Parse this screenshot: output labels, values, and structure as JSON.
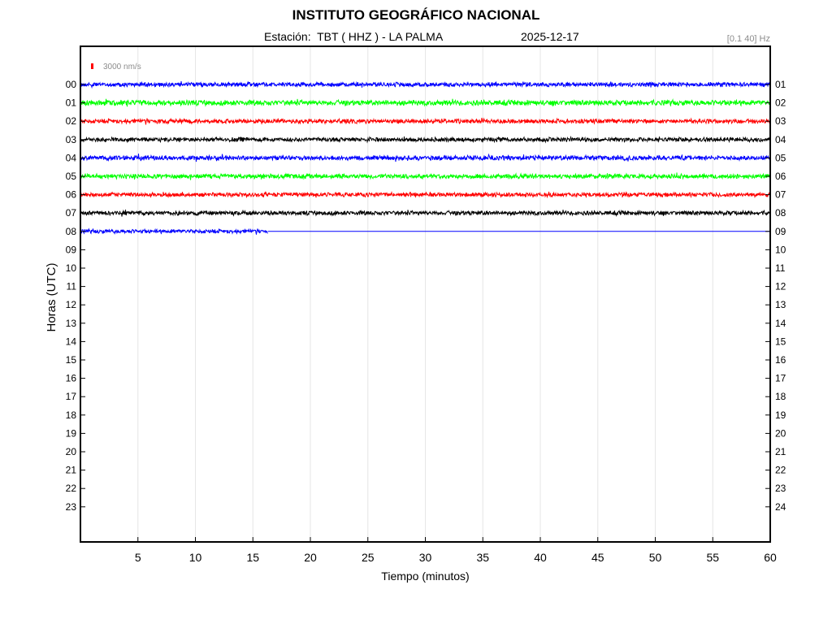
{
  "header": {
    "title": "INSTITUTO GEOGRÁFICO NACIONAL",
    "station": "Estación:  TBT ( HHZ ) - LA PALMA",
    "date": "2025-12-17",
    "band": "[0.1 40] Hz"
  },
  "chart_data": {
    "type": "line",
    "title": "INSTITUTO GEOGRÁFICO NACIONAL",
    "xlabel": "Tiempo (minutos)",
    "ylabel": "Horas (UTC)",
    "xlim": [
      0,
      60
    ],
    "x_ticks": [
      "5",
      "10",
      "15",
      "20",
      "25",
      "30",
      "35",
      "40",
      "45",
      "50",
      "55",
      "60"
    ],
    "y_ticks_left": [
      "00",
      "01",
      "02",
      "03",
      "04",
      "05",
      "06",
      "07",
      "08",
      "09",
      "10",
      "11",
      "12",
      "13",
      "14",
      "15",
      "16",
      "17",
      "18",
      "19",
      "20",
      "21",
      "22",
      "23"
    ],
    "y_ticks_right": [
      "01",
      "02",
      "03",
      "04",
      "05",
      "06",
      "07",
      "08",
      "09",
      "10",
      "11",
      "12",
      "13",
      "14",
      "15",
      "16",
      "17",
      "18",
      "19",
      "20",
      "21",
      "22",
      "23",
      "24"
    ],
    "scale_label": "3000 nm/s",
    "grid": "vertical",
    "colors": [
      "#0000ff",
      "#00ff00",
      "#ff0000",
      "#000000"
    ],
    "scale_color": "#ff0000",
    "series": [
      {
        "hour": "00",
        "end_minute": 60,
        "amplitude_nm_s": 1300
      },
      {
        "hour": "01",
        "end_minute": 60,
        "amplitude_nm_s": 1600
      },
      {
        "hour": "02",
        "end_minute": 60,
        "amplitude_nm_s": 1300
      },
      {
        "hour": "03",
        "end_minute": 60,
        "amplitude_nm_s": 1300
      },
      {
        "hour": "04",
        "end_minute": 60,
        "amplitude_nm_s": 1400
      },
      {
        "hour": "05",
        "end_minute": 60,
        "amplitude_nm_s": 1400
      },
      {
        "hour": "06",
        "end_minute": 60,
        "amplitude_nm_s": 1300
      },
      {
        "hour": "07",
        "end_minute": 60,
        "amplitude_nm_s": 1300
      },
      {
        "hour": "08",
        "end_minute": 16.3,
        "amplitude_nm_s": 1200
      }
    ]
  }
}
